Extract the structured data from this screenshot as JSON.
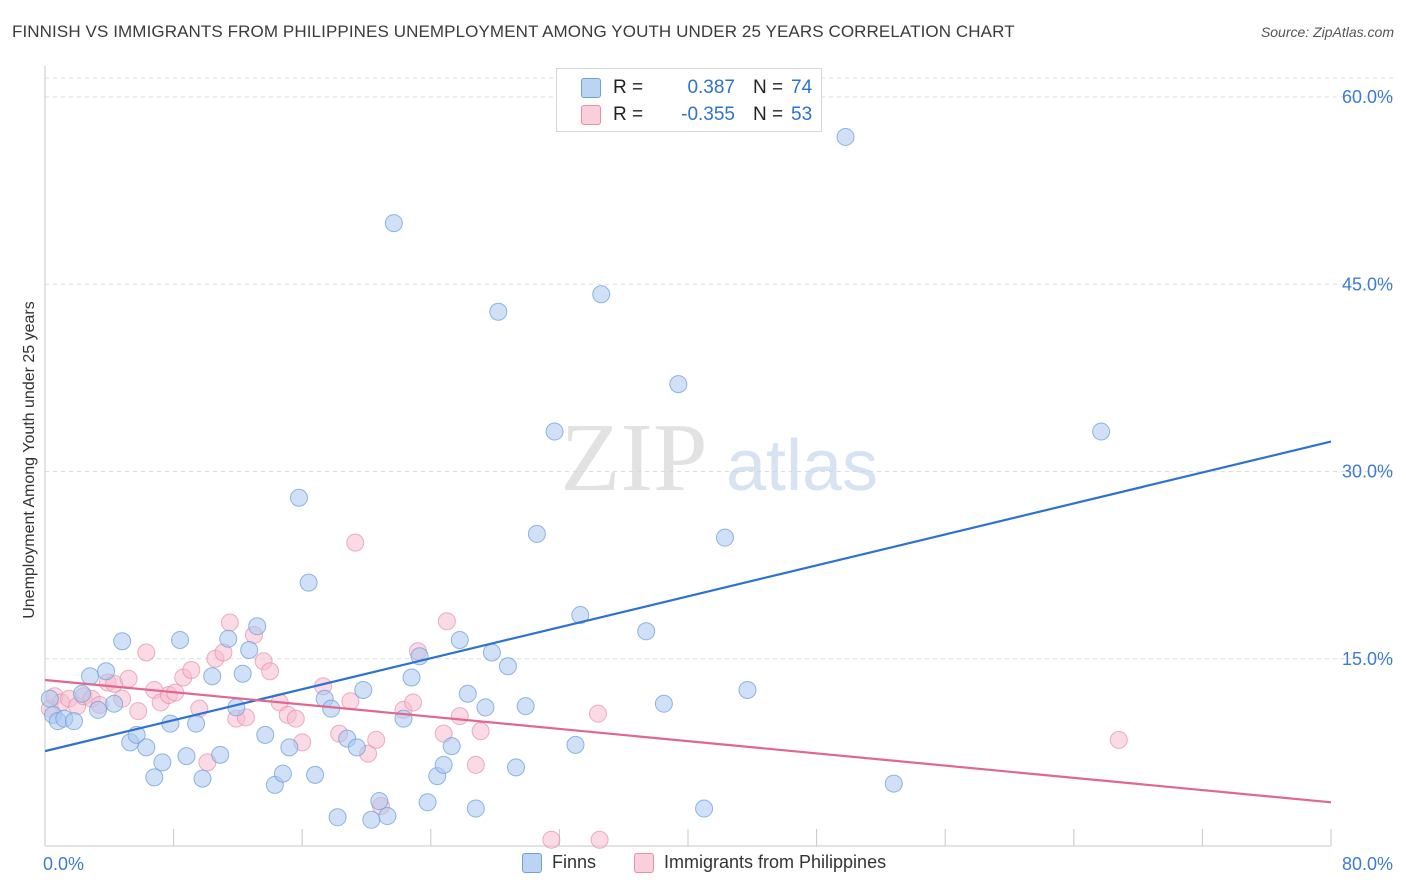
{
  "title": "FINNISH VS IMMIGRANTS FROM PHILIPPINES UNEMPLOYMENT AMONG YOUTH UNDER 25 YEARS CORRELATION CHART",
  "source": "Source: ZipAtlas.com",
  "watermark": {
    "zip": "ZIP",
    "atlas": "atlas"
  },
  "legend": {
    "rows": [
      {
        "r_label": "R =",
        "r_value": "0.387",
        "n_label": "N =",
        "n_value": "74"
      },
      {
        "r_label": "R =",
        "r_value": "-0.355",
        "n_label": "N =",
        "n_value": "53"
      }
    ]
  },
  "bottom_legend": {
    "finns": "Finns",
    "philippines": "Immigrants from Philippines"
  },
  "colors": {
    "finns_fill": "#a9c8f0",
    "finns_stroke": "#6f9fd8",
    "finns_line": "#2e72cf",
    "phil_fill": "#f6bccd",
    "phil_stroke": "#e98faa",
    "phil_line": "#e0678f",
    "axis_label": "#3d7bd4",
    "grid": "#dcdcdc"
  },
  "chart_data": {
    "type": "scatter",
    "title": "FINNISH VS IMMIGRANTS FROM PHILIPPINES UNEMPLOYMENT AMONG YOUTH UNDER 25 YEARS CORRELATION CHART",
    "xlabel": "",
    "ylabel": "Unemployment Among Youth under 25 years",
    "xlim": [
      0,
      80
    ],
    "ylim": [
      0,
      60
    ],
    "x_tick_labels": [
      "0.0%",
      "80.0%"
    ],
    "y_ticks": [
      15,
      30,
      45,
      60
    ],
    "y_tick_labels": [
      "15.0%",
      "30.0%",
      "45.0%",
      "60.0%"
    ],
    "grid": true,
    "legend_position": "top-center",
    "series": [
      {
        "name": "Finns",
        "R": 0.387,
        "N": 74,
        "trend": {
          "x": [
            0,
            80
          ],
          "y": [
            7.6,
            32.4
          ]
        },
        "points": [
          [
            0.3,
            11.8
          ],
          [
            0.5,
            10.5
          ],
          [
            0.8,
            10.0
          ],
          [
            1.2,
            10.2
          ],
          [
            1.8,
            10.0
          ],
          [
            2.3,
            12.2
          ],
          [
            2.8,
            13.6
          ],
          [
            3.3,
            10.9
          ],
          [
            3.8,
            14.0
          ],
          [
            4.3,
            11.4
          ],
          [
            4.8,
            16.4
          ],
          [
            5.3,
            8.3
          ],
          [
            5.7,
            8.9
          ],
          [
            6.3,
            7.9
          ],
          [
            6.8,
            5.5
          ],
          [
            7.3,
            6.7
          ],
          [
            7.8,
            9.8
          ],
          [
            8.4,
            16.5
          ],
          [
            8.8,
            7.2
          ],
          [
            9.4,
            9.8
          ],
          [
            9.8,
            5.4
          ],
          [
            10.4,
            13.6
          ],
          [
            10.9,
            7.3
          ],
          [
            11.4,
            16.6
          ],
          [
            11.9,
            11.1
          ],
          [
            12.3,
            13.8
          ],
          [
            12.7,
            15.7
          ],
          [
            13.2,
            17.6
          ],
          [
            13.7,
            8.9
          ],
          [
            14.3,
            4.9
          ],
          [
            14.8,
            5.8
          ],
          [
            15.2,
            7.9
          ],
          [
            15.8,
            27.9
          ],
          [
            16.4,
            21.1
          ],
          [
            16.8,
            5.7
          ],
          [
            17.4,
            11.8
          ],
          [
            17.8,
            11.0
          ],
          [
            18.2,
            2.3
          ],
          [
            18.8,
            8.6
          ],
          [
            19.4,
            7.9
          ],
          [
            19.8,
            12.5
          ],
          [
            20.3,
            2.1
          ],
          [
            20.8,
            3.6
          ],
          [
            21.3,
            2.4
          ],
          [
            21.7,
            49.9
          ],
          [
            22.3,
            10.2
          ],
          [
            22.8,
            13.5
          ],
          [
            23.3,
            15.2
          ],
          [
            23.8,
            3.5
          ],
          [
            24.4,
            5.6
          ],
          [
            24.8,
            6.5
          ],
          [
            25.3,
            8.0
          ],
          [
            25.8,
            16.5
          ],
          [
            26.3,
            12.2
          ],
          [
            26.8,
            3.0
          ],
          [
            27.4,
            11.1
          ],
          [
            27.8,
            15.5
          ],
          [
            28.2,
            42.8
          ],
          [
            28.8,
            14.4
          ],
          [
            29.3,
            6.3
          ],
          [
            29.9,
            11.2
          ],
          [
            30.6,
            25.0
          ],
          [
            31.7,
            33.2
          ],
          [
            33.0,
            8.1
          ],
          [
            33.3,
            18.5
          ],
          [
            34.6,
            44.2
          ],
          [
            37.4,
            17.2
          ],
          [
            38.5,
            11.4
          ],
          [
            39.4,
            37.0
          ],
          [
            41.0,
            3.0
          ],
          [
            42.3,
            24.7
          ],
          [
            43.7,
            12.5
          ],
          [
            49.8,
            56.8
          ],
          [
            52.8,
            5.0
          ],
          [
            65.7,
            33.2
          ]
        ]
      },
      {
        "name": "Immigrants from Philippines",
        "R": -0.355,
        "N": 53,
        "trend": {
          "x": [
            0,
            80
          ],
          "y": [
            13.3,
            3.5
          ]
        },
        "points": [
          [
            0.3,
            11.0
          ],
          [
            0.6,
            12.0
          ],
          [
            1.0,
            11.5
          ],
          [
            1.5,
            11.8
          ],
          [
            2.0,
            11.2
          ],
          [
            2.4,
            12.0
          ],
          [
            2.9,
            11.8
          ],
          [
            3.4,
            11.3
          ],
          [
            3.9,
            13.1
          ],
          [
            4.3,
            13.0
          ],
          [
            4.8,
            11.8
          ],
          [
            5.2,
            13.4
          ],
          [
            5.8,
            10.8
          ],
          [
            6.3,
            15.5
          ],
          [
            6.8,
            12.5
          ],
          [
            7.2,
            11.5
          ],
          [
            7.7,
            12.1
          ],
          [
            8.1,
            12.3
          ],
          [
            8.6,
            13.5
          ],
          [
            9.1,
            14.1
          ],
          [
            9.6,
            11.0
          ],
          [
            10.1,
            6.7
          ],
          [
            10.6,
            15.0
          ],
          [
            11.1,
            15.5
          ],
          [
            11.5,
            17.9
          ],
          [
            11.9,
            10.2
          ],
          [
            12.5,
            10.3
          ],
          [
            13.0,
            16.9
          ],
          [
            13.6,
            14.8
          ],
          [
            14.0,
            14.0
          ],
          [
            14.6,
            11.5
          ],
          [
            15.1,
            10.5
          ],
          [
            15.6,
            10.2
          ],
          [
            16.0,
            8.3
          ],
          [
            17.3,
            12.8
          ],
          [
            18.3,
            9.0
          ],
          [
            19.0,
            11.6
          ],
          [
            19.3,
            24.3
          ],
          [
            20.1,
            7.4
          ],
          [
            20.6,
            8.5
          ],
          [
            20.9,
            3.2
          ],
          [
            22.3,
            10.9
          ],
          [
            22.9,
            11.5
          ],
          [
            23.2,
            15.6
          ],
          [
            24.8,
            9.0
          ],
          [
            25.0,
            18.0
          ],
          [
            25.8,
            10.4
          ],
          [
            26.8,
            6.5
          ],
          [
            27.1,
            9.2
          ],
          [
            31.5,
            0.5
          ],
          [
            34.5,
            0.5
          ],
          [
            34.4,
            10.6
          ],
          [
            66.8,
            8.5
          ]
        ]
      }
    ]
  }
}
